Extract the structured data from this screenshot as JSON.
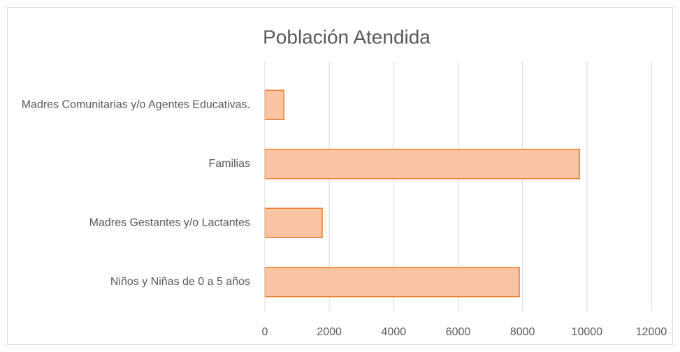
{
  "chart_data": {
    "type": "bar",
    "orientation": "horizontal",
    "title": "Población Atendida",
    "categories": [
      "Madres Comunitarias y/o Agentes Educativas.",
      "Familias",
      "Madres Gestantes y/o Lactantes",
      "Niños y Niñas de 0 a 5 años"
    ],
    "values": [
      590,
      9770,
      1780,
      7900
    ],
    "color": "#f8c4a2",
    "edge_color": "#ed7d31",
    "xlim": [
      0,
      12000
    ],
    "xticks": [
      0,
      2000,
      4000,
      6000,
      8000,
      10000,
      12000
    ],
    "grid": true
  }
}
